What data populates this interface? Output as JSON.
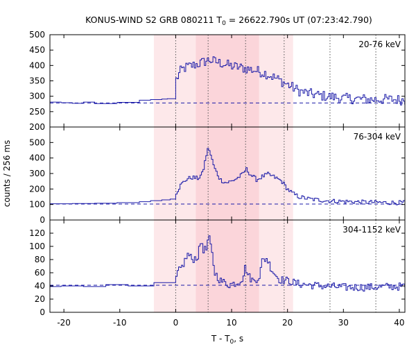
{
  "chart_data": {
    "type": "line",
    "title": "KONUS-WIND S2 GRB 080211 T",
    "title_sub": "0",
    "title_rest": " = 26622.790s UT (07:23:42.790)",
    "xlabel": "T - T",
    "xlabel_sub": "0",
    "xlabel_rest": ", s",
    "ylabel": "counts / 256 ms",
    "xlim": [
      -22.5,
      41
    ],
    "xticks": [
      "-20",
      "-10",
      "0",
      "10",
      "20",
      "30",
      "40"
    ],
    "xtick_values": [
      -20,
      -10,
      0,
      10,
      20,
      30,
      40
    ],
    "shaded_intervals": [
      {
        "x0": -3.9,
        "x1": 21.0,
        "color": "#fde8ea"
      },
      {
        "x0": 3.6,
        "x1": 14.9,
        "color": "#fbd5da"
      }
    ],
    "vertical_markers": [
      0.0,
      5.8,
      12.5,
      19.4,
      27.6,
      35.8
    ],
    "line_color": "#1a1aa8",
    "panels": [
      {
        "name": "20-76 keV",
        "ylim": [
          200,
          500
        ],
        "yticks": [
          "200",
          "250",
          "300",
          "350",
          "400",
          "450",
          "500"
        ],
        "ytick_values": [
          200,
          250,
          300,
          350,
          400,
          450,
          500
        ],
        "background_level": 278,
        "coarse": [
          [
            -22.5,
            281
          ],
          [
            -20.5,
            279
          ],
          [
            -18.5,
            277
          ],
          [
            -16.5,
            281
          ],
          [
            -14.5,
            276
          ],
          [
            -12.5,
            276
          ],
          [
            -10.5,
            280
          ],
          [
            -6.5,
            287
          ],
          [
            -4.5,
            289
          ],
          [
            -2.5,
            291
          ],
          [
            -1.5,
            292
          ],
          [
            0,
            292
          ]
        ],
        "envelope": [
          [
            0,
            350
          ],
          [
            1,
            385
          ],
          [
            2,
            395
          ],
          [
            4,
            405
          ],
          [
            6,
            418
          ],
          [
            8,
            408
          ],
          [
            10,
            398
          ],
          [
            12,
            392
          ],
          [
            14,
            385
          ],
          [
            16,
            375
          ],
          [
            18,
            358
          ],
          [
            20,
            338
          ],
          [
            22,
            318
          ],
          [
            24,
            308
          ],
          [
            26,
            302
          ],
          [
            28,
            298
          ],
          [
            30,
            293
          ],
          [
            32,
            292
          ],
          [
            35,
            289
          ],
          [
            38,
            290
          ],
          [
            41,
            288
          ]
        ],
        "noise": 17
      },
      {
        "name": "76-304 keV",
        "ylim": [
          0,
          600
        ],
        "yticks": [
          "0",
          "100",
          "200",
          "300",
          "400",
          "500"
        ],
        "ytick_values": [
          0,
          100,
          200,
          300,
          400,
          500
        ],
        "background_level": 103,
        "coarse": [
          [
            -22.5,
            105
          ],
          [
            -18.5,
            106
          ],
          [
            -14.5,
            108
          ],
          [
            -10.5,
            112
          ],
          [
            -6.5,
            118
          ],
          [
            -4.5,
            125
          ],
          [
            -2.5,
            130
          ],
          [
            -1,
            135
          ],
          [
            0,
            140
          ]
        ],
        "envelope": [
          [
            0,
            170
          ],
          [
            1,
            230
          ],
          [
            2,
            265
          ],
          [
            3,
            275
          ],
          [
            4,
            268
          ],
          [
            4.8,
            300
          ],
          [
            5.5,
            420
          ],
          [
            5.9,
            470
          ],
          [
            6.4,
            400
          ],
          [
            7,
            330
          ],
          [
            8,
            260
          ],
          [
            9,
            240
          ],
          [
            10,
            250
          ],
          [
            11,
            270
          ],
          [
            12,
            295
          ],
          [
            12.6,
            330
          ],
          [
            13.5,
            290
          ],
          [
            14.5,
            260
          ],
          [
            15.5,
            280
          ],
          [
            16.5,
            295
          ],
          [
            17.5,
            280
          ],
          [
            19,
            250
          ],
          [
            20,
            200
          ],
          [
            21,
            170
          ],
          [
            22,
            150
          ],
          [
            24,
            135
          ],
          [
            26,
            128
          ],
          [
            28,
            122
          ],
          [
            30,
            120
          ],
          [
            34,
            115
          ],
          [
            38,
            112
          ],
          [
            41,
            112
          ]
        ],
        "noise": 14
      },
      {
        "name": "304-1152 keV",
        "ylim": [
          0,
          140
        ],
        "yticks": [
          "0",
          "20",
          "40",
          "60",
          "80",
          "100",
          "120"
        ],
        "ytick_values": [
          0,
          20,
          40,
          60,
          80,
          100,
          120
        ],
        "background_level": 41,
        "coarse": [
          [
            -22.5,
            39
          ],
          [
            -20.5,
            40
          ],
          [
            -16.5,
            39
          ],
          [
            -12.5,
            42
          ],
          [
            -8.5,
            40
          ],
          [
            -3.9,
            45
          ],
          [
            0,
            46
          ]
        ],
        "envelope": [
          [
            0,
            48
          ],
          [
            0.4,
            60
          ],
          [
            1.2,
            70
          ],
          [
            2.2,
            88
          ],
          [
            3,
            80
          ],
          [
            4,
            85
          ],
          [
            4.6,
            110
          ],
          [
            5,
            95
          ],
          [
            5.5,
            95
          ],
          [
            5.9,
            115
          ],
          [
            6.4,
            95
          ],
          [
            7,
            60
          ],
          [
            8,
            48
          ],
          [
            9.5,
            42
          ],
          [
            11,
            45
          ],
          [
            12,
            52
          ],
          [
            12.5,
            70
          ],
          [
            13,
            55
          ],
          [
            14,
            47
          ],
          [
            15,
            55
          ],
          [
            15.5,
            78
          ],
          [
            16.3,
            82
          ],
          [
            17.2,
            65
          ],
          [
            18.5,
            50
          ],
          [
            20,
            48
          ],
          [
            22,
            43
          ],
          [
            26,
            40
          ],
          [
            30,
            38
          ],
          [
            35,
            38
          ],
          [
            38,
            39
          ],
          [
            41,
            39
          ]
        ],
        "noise": 6
      }
    ]
  }
}
